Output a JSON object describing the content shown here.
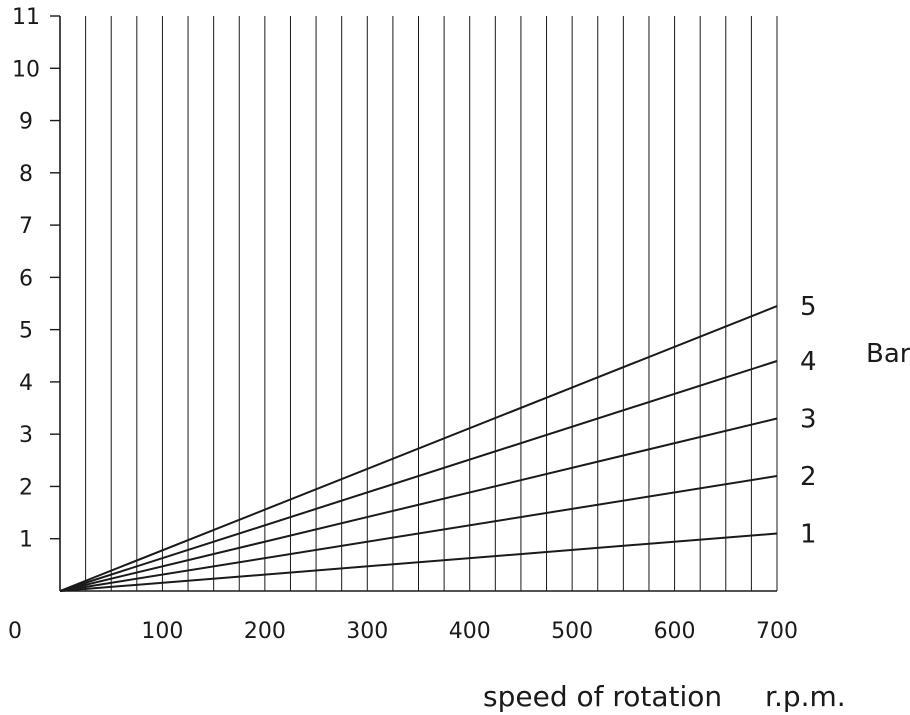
{
  "chart_data": {
    "type": "line",
    "x": [
      0,
      700
    ],
    "xlim": [
      0,
      700
    ],
    "ylim": [
      0,
      11
    ],
    "x_ticks": [
      "0",
      "100",
      "200",
      "300",
      "400",
      "500",
      "600",
      "700"
    ],
    "y_ticks": [
      "1",
      "2",
      "3",
      "4",
      "5",
      "6",
      "7",
      "8",
      "9",
      "10",
      "11"
    ],
    "grid": true,
    "xlabel": "speed of rotation",
    "xunit": "r.p.m.",
    "series_unit": "Bar",
    "series": [
      {
        "name": "1",
        "values": [
          0,
          1.1
        ]
      },
      {
        "name": "2",
        "values": [
          0,
          2.2
        ]
      },
      {
        "name": "3",
        "values": [
          0,
          3.3
        ]
      },
      {
        "name": "4",
        "values": [
          0,
          4.4
        ]
      },
      {
        "name": "5",
        "values": [
          0,
          5.45
        ]
      }
    ],
    "line_color": "#1a1a1a",
    "grid_color": "#1a1a1a"
  }
}
